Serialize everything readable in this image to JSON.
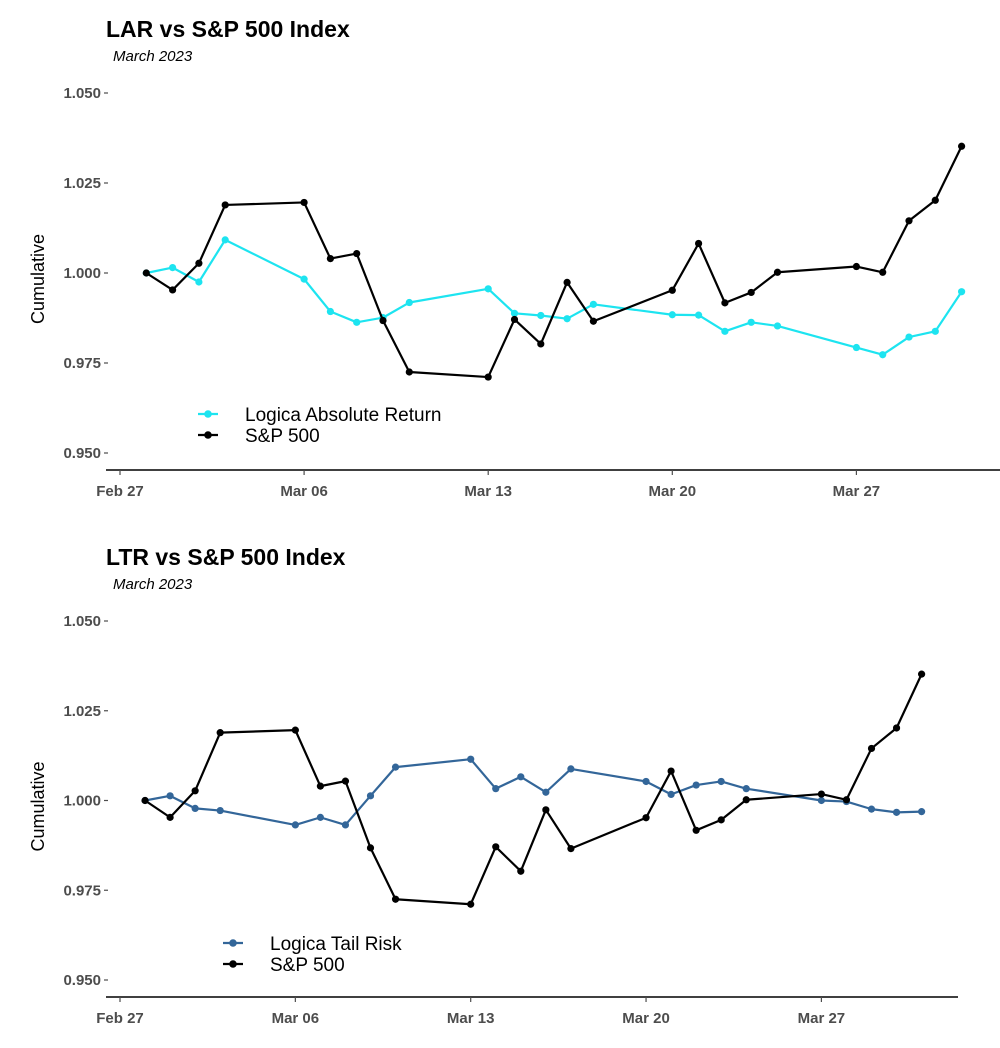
{
  "chart_data": [
    {
      "type": "line",
      "title": "LAR vs S&P 500 Index",
      "subtitle": "March 2023",
      "ylabel": "Cumulative",
      "xlabel": "",
      "ylim": [
        0.945,
        1.055
      ],
      "yticks": [
        "0.950",
        "0.975",
        "1.000",
        "1.025",
        "1.050"
      ],
      "ytick_values": [
        0.95,
        0.975,
        1.0,
        1.025,
        1.05
      ],
      "xticks": [
        "Feb 27",
        "Mar 06",
        "Mar 13",
        "Mar 20",
        "Mar 27"
      ],
      "xtick_days": [
        0,
        7,
        14,
        21,
        28
      ],
      "xlim": [
        -1,
        32.5
      ],
      "legend_position": "bottom-left",
      "series": [
        {
          "name": "Logica Absolute Return",
          "color": "#1de4f0",
          "x": [
            1,
            2,
            3,
            4,
            7,
            8,
            9,
            10,
            11,
            14,
            15,
            16,
            17,
            18,
            21,
            22,
            23,
            24,
            25,
            28,
            29,
            30,
            31,
            32
          ],
          "values": [
            1.0,
            1.0015,
            0.9975,
            1.0092,
            0.9983,
            0.9893,
            0.9863,
            0.9876,
            0.9918,
            0.9956,
            0.9888,
            0.9882,
            0.9873,
            0.9913,
            0.9884,
            0.9883,
            0.9838,
            0.9863,
            0.9853,
            0.9793,
            0.9773,
            0.9822,
            0.9838,
            0.9948
          ]
        },
        {
          "name": "S&P 500",
          "color": "#000000",
          "x": [
            1,
            2,
            3,
            4,
            7,
            8,
            9,
            10,
            11,
            14,
            15,
            16,
            17,
            18,
            21,
            22,
            23,
            24,
            25,
            28,
            29,
            30,
            31,
            32
          ],
          "values": [
            1.0,
            0.9953,
            1.0027,
            1.0189,
            1.0196,
            1.004,
            1.0054,
            0.9868,
            0.9725,
            0.9711,
            0.9871,
            0.9803,
            0.9974,
            0.9866,
            0.9952,
            1.0082,
            0.9917,
            0.9946,
            1.0002,
            1.0018,
            1.0002,
            1.0145,
            1.0202,
            1.0352
          ]
        }
      ]
    },
    {
      "type": "line",
      "title": "LTR vs S&P 500 Index",
      "subtitle": "March 2023",
      "ylabel": "Cumulative",
      "xlabel": "",
      "ylim": [
        0.945,
        1.055
      ],
      "yticks": [
        "0.950",
        "0.975",
        "1.000",
        "1.025",
        "1.050"
      ],
      "ytick_values": [
        0.95,
        0.975,
        1.0,
        1.025,
        1.05
      ],
      "xticks": [
        "Feb 27",
        "Mar 06",
        "Mar 13",
        "Mar 20",
        "Mar 27"
      ],
      "xtick_days": [
        0,
        7,
        14,
        21,
        28
      ],
      "xlim": [
        -1,
        32.5
      ],
      "legend_position": "bottom-left",
      "series": [
        {
          "name": "Logica Tail Risk",
          "color": "#336699",
          "x": [
            1,
            2,
            3,
            4,
            7,
            8,
            9,
            10,
            11,
            14,
            15,
            16,
            17,
            18,
            21,
            22,
            23,
            24,
            25,
            28,
            29,
            30,
            31,
            32
          ],
          "values": [
            1.0,
            1.0013,
            0.9978,
            0.9972,
            0.9932,
            0.9953,
            0.9932,
            1.0013,
            1.0093,
            1.0115,
            1.0033,
            1.0066,
            1.0023,
            1.0088,
            1.0053,
            1.0017,
            1.0043,
            1.0053,
            1.0033,
            1.0,
            0.9997,
            0.9976,
            0.9967,
            0.9969
          ]
        },
        {
          "name": "S&P 500",
          "color": "#000000",
          "x": [
            1,
            2,
            3,
            4,
            7,
            8,
            9,
            10,
            11,
            14,
            15,
            16,
            17,
            18,
            21,
            22,
            23,
            24,
            25,
            28,
            29,
            30,
            31,
            32
          ],
          "values": [
            1.0,
            0.9953,
            1.0027,
            1.0189,
            1.0196,
            1.004,
            1.0054,
            0.9868,
            0.9725,
            0.9711,
            0.9871,
            0.9803,
            0.9974,
            0.9866,
            0.9952,
            1.0082,
            0.9917,
            0.9946,
            1.0002,
            1.0018,
            1.0002,
            1.0145,
            1.0202,
            1.0352
          ]
        }
      ]
    }
  ]
}
